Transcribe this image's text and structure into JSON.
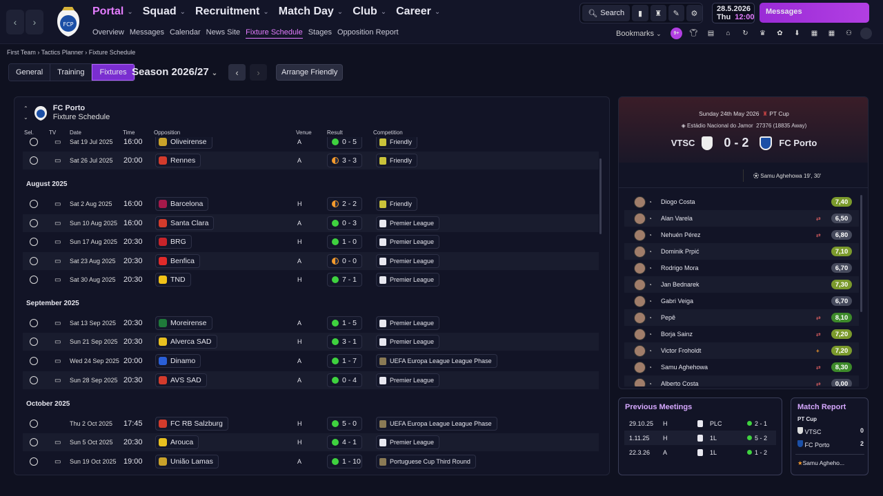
{
  "nav": {
    "main": [
      {
        "label": "Portal",
        "active": true
      },
      {
        "label": "Squad"
      },
      {
        "label": "Recruitment"
      },
      {
        "label": "Match Day"
      },
      {
        "label": "Club"
      },
      {
        "label": "Career"
      }
    ],
    "sub": [
      {
        "label": "Overview"
      },
      {
        "label": "Messages"
      },
      {
        "label": "Calendar"
      },
      {
        "label": "News Site"
      },
      {
        "label": "Fixture Schedule",
        "active": true
      },
      {
        "label": "Stages"
      },
      {
        "label": "Opposition Report"
      }
    ]
  },
  "toolbar": {
    "search_label": "Search",
    "date": "28.5.2026",
    "day": "Thu",
    "time": "12:00",
    "messages_label": "Messages",
    "bookmarks_label": "Bookmarks",
    "badge": "9+"
  },
  "breadcrumb": [
    "First Team",
    "Tactics Planner",
    "Fixture Schedule"
  ],
  "tabs": [
    {
      "label": "General"
    },
    {
      "label": "Training"
    },
    {
      "label": "Fixtures",
      "active": true
    }
  ],
  "season": "Season 2026/27",
  "arrange_label": "Arrange Friendly",
  "schedule": {
    "club": "FC Porto",
    "subtitle": "Fixture Schedule",
    "columns": [
      "Sel.",
      "TV",
      "Date",
      "Time",
      "Opposition",
      "Venue",
      "Result",
      "Competition"
    ],
    "rows": [
      {
        "kind": "fixture",
        "date": "Sat 19 Jul 2025",
        "time": "16:00",
        "opp": "Oliveirense",
        "venue": "A",
        "result": "0 - 5",
        "outcome": "w",
        "comp": "Friendly",
        "color": "#c9a22a"
      },
      {
        "kind": "fixture",
        "date": "Sat 26 Jul 2025",
        "time": "20:00",
        "opp": "Rennes",
        "venue": "A",
        "result": "3 - 3",
        "outcome": "d",
        "comp": "Friendly",
        "color": "#d33b2c"
      },
      {
        "kind": "month",
        "label": "August 2025"
      },
      {
        "kind": "fixture",
        "date": "Sat 2 Aug 2025",
        "time": "16:00",
        "opp": "Barcelona",
        "venue": "H",
        "result": "2 - 2",
        "outcome": "d",
        "comp": "Friendly",
        "color": "#a5194a"
      },
      {
        "kind": "fixture",
        "date": "Sun 10 Aug 2025",
        "time": "16:00",
        "opp": "Santa Clara",
        "venue": "A",
        "result": "0 - 3",
        "outcome": "w",
        "comp": "Premier League",
        "color": "#d33b2c"
      },
      {
        "kind": "fixture",
        "date": "Sun 17 Aug 2025",
        "time": "20:30",
        "opp": "BRG",
        "venue": "H",
        "result": "1 - 0",
        "outcome": "w",
        "comp": "Premier League",
        "color": "#c8242a"
      },
      {
        "kind": "fixture",
        "date": "Sat 23 Aug 2025",
        "time": "20:30",
        "opp": "Benfica",
        "venue": "A",
        "result": "0 - 0",
        "outcome": "d",
        "comp": "Premier League",
        "color": "#e02a2a"
      },
      {
        "kind": "fixture",
        "date": "Sat 30 Aug 2025",
        "time": "20:30",
        "opp": "TND",
        "venue": "H",
        "result": "7 - 1",
        "outcome": "w",
        "comp": "Premier League",
        "color": "#f2c318"
      },
      {
        "kind": "month",
        "label": "September 2025"
      },
      {
        "kind": "fixture",
        "date": "Sat 13 Sep 2025",
        "time": "20:30",
        "opp": "Moreirense",
        "venue": "A",
        "result": "1 - 5",
        "outcome": "w",
        "comp": "Premier League",
        "color": "#1f7a3a"
      },
      {
        "kind": "fixture",
        "date": "Sun 21 Sep 2025",
        "time": "20:30",
        "opp": "Alverca SAD",
        "venue": "H",
        "result": "3 - 1",
        "outcome": "w",
        "comp": "Premier League",
        "color": "#e8c020"
      },
      {
        "kind": "fixture",
        "date": "Wed 24 Sep 2025",
        "time": "20:00",
        "opp": "Dinamo",
        "venue": "A",
        "result": "1 - 7",
        "outcome": "w",
        "comp": "UEFA Europa League League Phase",
        "color": "#2a5fd8"
      },
      {
        "kind": "fixture",
        "date": "Sun 28 Sep 2025",
        "time": "20:30",
        "opp": "AVS SAD",
        "venue": "A",
        "result": "0 - 4",
        "outcome": "w",
        "comp": "Premier League",
        "color": "#d33b2c"
      },
      {
        "kind": "month",
        "label": "October 2025"
      },
      {
        "kind": "fixture",
        "date": "Thu 2 Oct 2025",
        "time": "17:45",
        "opp": "FC RB Salzburg",
        "venue": "H",
        "result": "5 - 0",
        "outcome": "w",
        "comp": "UEFA Europa League League Phase",
        "color": "#d33b2c",
        "notv": true
      },
      {
        "kind": "fixture",
        "date": "Sun 5 Oct 2025",
        "time": "20:30",
        "opp": "Arouca",
        "venue": "H",
        "result": "4 - 1",
        "outcome": "w",
        "comp": "Premier League",
        "color": "#e8c020"
      },
      {
        "kind": "fixture",
        "date": "Sun 19 Oct 2025",
        "time": "19:00",
        "opp": "União Lamas",
        "venue": "A",
        "result": "1 - 10",
        "outcome": "w",
        "comp": "Portuguese Cup Third Round",
        "color": "#c9a22a"
      }
    ]
  },
  "match": {
    "date": "Sunday 24th May 2026",
    "comp": "PT Cup",
    "stadium": "Estádio Nacional do Jamor",
    "attendance": "27376 (18835 Away)",
    "home": "VTSC",
    "away": "FC Porto",
    "score": "0 - 2",
    "scorer": "Samu Aghehowa 19', 30'",
    "players": [
      {
        "name": "Diogo Costa",
        "rating": "7,40",
        "cls": "l"
      },
      {
        "name": "Alan Varela",
        "rating": "6,50",
        "cls": "n",
        "sub": true
      },
      {
        "name": "Nehuén Pérez",
        "rating": "6,80",
        "cls": "n",
        "sub": true
      },
      {
        "name": "Dominik Prpić",
        "rating": "7,10",
        "cls": "l"
      },
      {
        "name": "Rodrigo Mora",
        "rating": "6,70",
        "cls": "n"
      },
      {
        "name": "Jan Bednarek",
        "rating": "7,30",
        "cls": "l"
      },
      {
        "name": "Gabri Veiga",
        "rating": "6,70",
        "cls": "n"
      },
      {
        "name": "Pepê",
        "rating": "8,10",
        "cls": "g",
        "sub": true
      },
      {
        "name": "Borja Sainz",
        "rating": "7,20",
        "cls": "l",
        "sub": true
      },
      {
        "name": "Victor Froholdt",
        "rating": "7,20",
        "cls": "l",
        "card": true
      },
      {
        "name": "Samu Aghehowa",
        "rating": "8,30",
        "cls": "g",
        "sub": true
      },
      {
        "name": "Alberto Costa",
        "rating": "0,00",
        "cls": "n",
        "sub": true
      }
    ]
  },
  "previous": {
    "title": "Previous Meetings",
    "rows": [
      {
        "date": "29.10.25",
        "venue": "H",
        "comp": "PLC",
        "score": "2 - 1"
      },
      {
        "date": "1.11.25",
        "venue": "H",
        "comp": "1L",
        "score": "5 - 2"
      },
      {
        "date": "22.3.26",
        "venue": "A",
        "comp": "1L",
        "score": "1 - 2"
      }
    ]
  },
  "report": {
    "title": "Match Report",
    "comp": "PT Cup",
    "home": "VTSC",
    "home_score": "0",
    "away": "FC Porto",
    "away_score": "2",
    "motm": "Samu Aghehо..."
  }
}
